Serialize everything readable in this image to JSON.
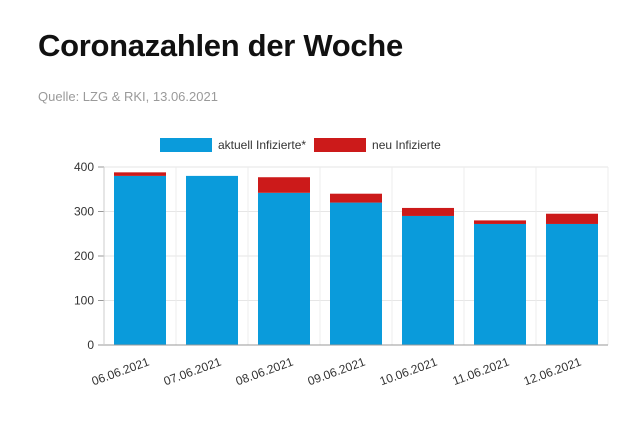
{
  "header": {
    "title": "Coronazahlen der Woche",
    "source": "Quelle: LZG & RKI, 13.06.2021"
  },
  "chart_data": {
    "type": "bar",
    "stacked": true,
    "categories": [
      "06.06.2021",
      "07.06.2021",
      "08.06.2021",
      "09.06.2021",
      "10.06.2021",
      "11.06.2021",
      "12.06.2021"
    ],
    "series": [
      {
        "name": "aktuell Infizierte*",
        "color": "#0a9bdb",
        "values": [
          380,
          380,
          342,
          320,
          290,
          272,
          272
        ]
      },
      {
        "name": "neu Infizierte",
        "color": "#cc1a1a",
        "values": [
          8,
          0,
          35,
          20,
          18,
          8,
          23
        ]
      }
    ],
    "y_ticks": [
      0,
      100,
      200,
      300,
      400
    ],
    "ylim": [
      0,
      400
    ],
    "grid": true,
    "legend_position": "top"
  }
}
